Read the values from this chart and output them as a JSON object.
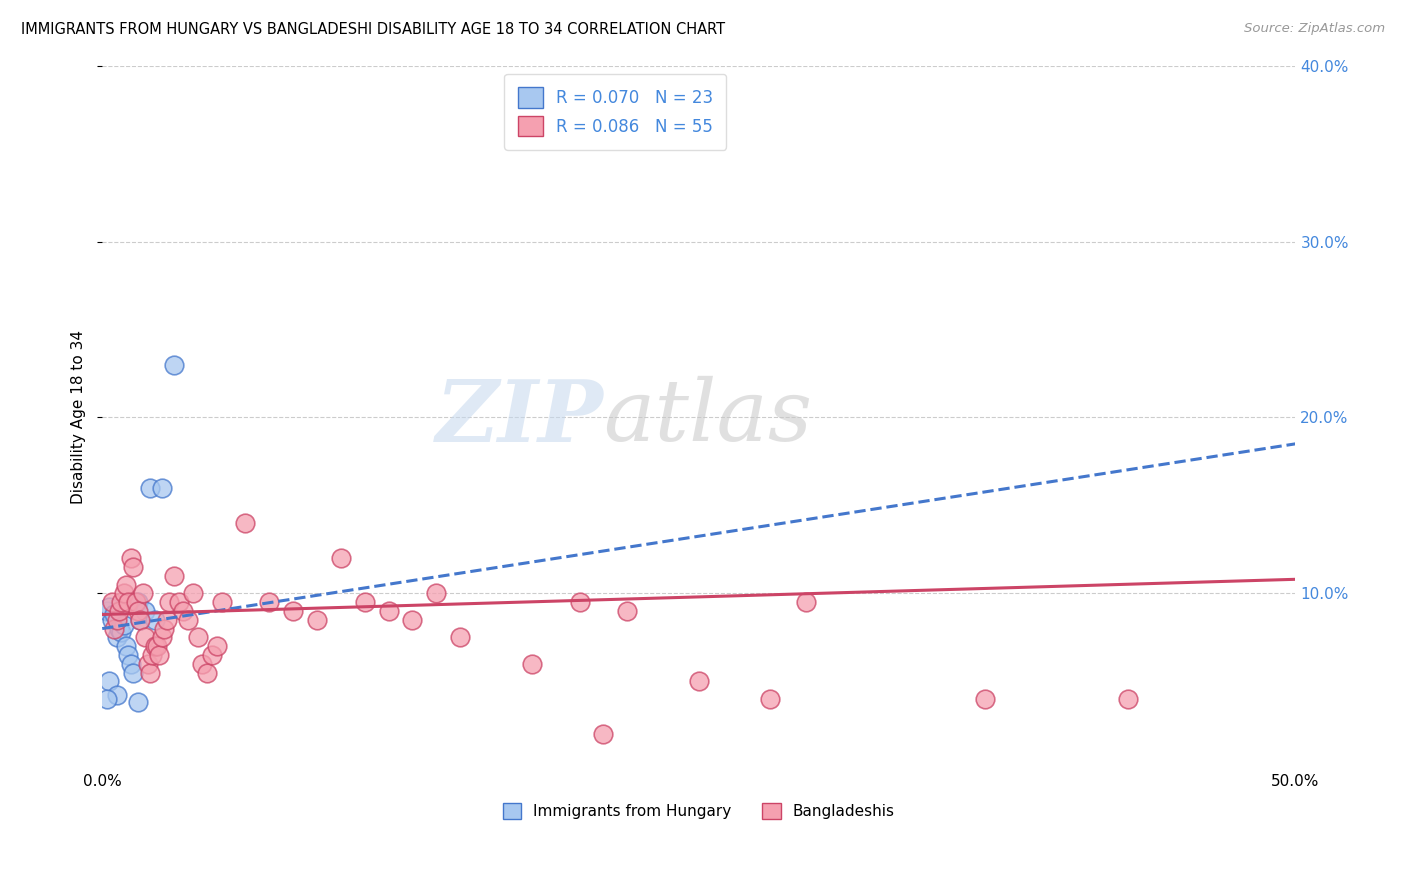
{
  "title": "IMMIGRANTS FROM HUNGARY VS BANGLADESHI DISABILITY AGE 18 TO 34 CORRELATION CHART",
  "source": "Source: ZipAtlas.com",
  "ylabel": "Disability Age 18 to 34",
  "legend_label1": "Immigrants from Hungary",
  "legend_label2": "Bangladeshis",
  "r1": 0.07,
  "n1": 23,
  "r2": 0.086,
  "n2": 55,
  "xlim": [
    0.0,
    0.5
  ],
  "ylim": [
    0.0,
    0.4
  ],
  "yticks": [
    0.1,
    0.2,
    0.3,
    0.4
  ],
  "ytick_labels": [
    "10.0%",
    "20.0%",
    "30.0%",
    "40.0%"
  ],
  "color_hungary": "#a8c8f0",
  "color_bangladeshi": "#f5a0b0",
  "color_line_hungary": "#4477cc",
  "color_line_bangladeshi": "#cc4466",
  "watermark_zip": "ZIP",
  "watermark_atlas": "atlas",
  "hungary_line_x": [
    0.0,
    0.5
  ],
  "hungary_line_y": [
    0.08,
    0.185
  ],
  "bangladeshi_line_x": [
    0.0,
    0.5
  ],
  "bangladeshi_line_y": [
    0.088,
    0.108
  ],
  "hungary_x": [
    0.002,
    0.003,
    0.004,
    0.005,
    0.006,
    0.007,
    0.008,
    0.009,
    0.01,
    0.011,
    0.012,
    0.013,
    0.015,
    0.016,
    0.018,
    0.02,
    0.022,
    0.025,
    0.003,
    0.006,
    0.015,
    0.03,
    0.002
  ],
  "hungary_y": [
    0.09,
    0.092,
    0.085,
    0.088,
    0.075,
    0.08,
    0.078,
    0.082,
    0.07,
    0.065,
    0.06,
    0.055,
    0.095,
    0.085,
    0.09,
    0.16,
    0.085,
    0.16,
    0.05,
    0.042,
    0.038,
    0.23,
    0.04
  ],
  "bangladeshi_x": [
    0.004,
    0.005,
    0.006,
    0.007,
    0.008,
    0.009,
    0.01,
    0.011,
    0.012,
    0.013,
    0.014,
    0.015,
    0.016,
    0.017,
    0.018,
    0.019,
    0.02,
    0.021,
    0.022,
    0.023,
    0.024,
    0.025,
    0.026,
    0.027,
    0.028,
    0.03,
    0.032,
    0.034,
    0.036,
    0.038,
    0.04,
    0.042,
    0.044,
    0.046,
    0.048,
    0.05,
    0.06,
    0.07,
    0.08,
    0.09,
    0.1,
    0.11,
    0.12,
    0.13,
    0.14,
    0.15,
    0.18,
    0.2,
    0.21,
    0.22,
    0.25,
    0.28,
    0.295,
    0.37,
    0.43
  ],
  "bangladeshi_y": [
    0.095,
    0.08,
    0.085,
    0.09,
    0.095,
    0.1,
    0.105,
    0.095,
    0.12,
    0.115,
    0.095,
    0.09,
    0.085,
    0.1,
    0.075,
    0.06,
    0.055,
    0.065,
    0.07,
    0.07,
    0.065,
    0.075,
    0.08,
    0.085,
    0.095,
    0.11,
    0.095,
    0.09,
    0.085,
    0.1,
    0.075,
    0.06,
    0.055,
    0.065,
    0.07,
    0.095,
    0.14,
    0.095,
    0.09,
    0.085,
    0.12,
    0.095,
    0.09,
    0.085,
    0.1,
    0.075,
    0.06,
    0.095,
    0.02,
    0.09,
    0.05,
    0.04,
    0.095,
    0.04,
    0.04
  ]
}
